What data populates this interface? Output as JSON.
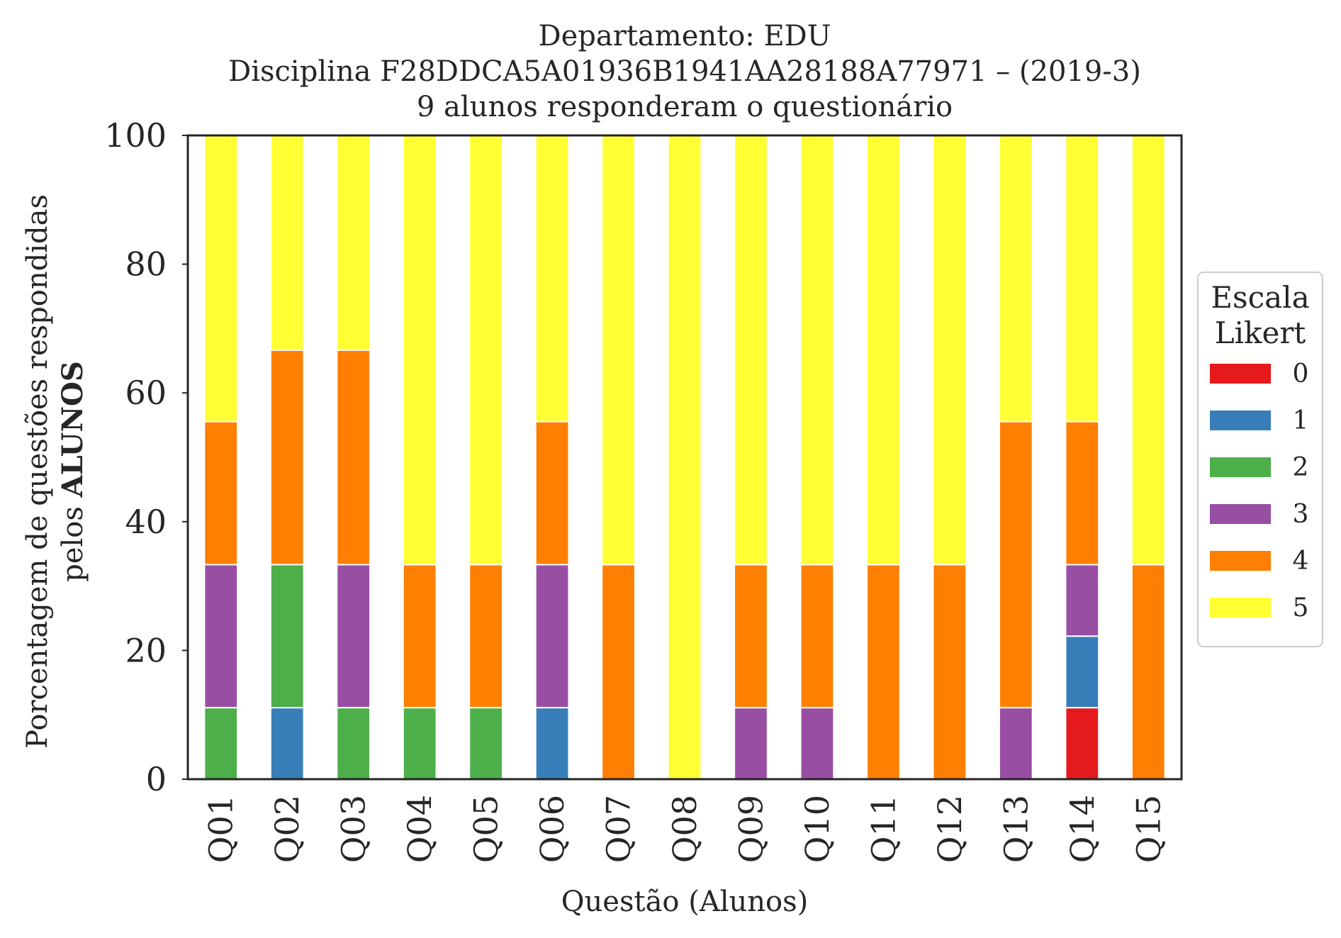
{
  "chart_data": {
    "type": "bar",
    "stacked": true,
    "title_lines": [
      "Departamento: EDU",
      "Disciplina F28DDCA5A01936B1941AA28188A77971 – (2019-3)",
      "9 alunos responderam o questionário"
    ],
    "xlabel": "Questão (Alunos)",
    "ylabel_line1": "Porcentagem de questões respondidas",
    "ylabel_line2_prefix": "pelos ",
    "ylabel_line2_bold": "ALUNOS",
    "ylim": [
      0,
      100
    ],
    "yticks": [
      "0",
      "20",
      "40",
      "60",
      "80",
      "100"
    ],
    "grid": false,
    "categories": [
      "Q01",
      "Q02",
      "Q03",
      "Q04",
      "Q05",
      "Q06",
      "Q07",
      "Q08",
      "Q09",
      "Q10",
      "Q11",
      "Q12",
      "Q13",
      "Q14",
      "Q15"
    ],
    "legend": {
      "title_line1": "Escala",
      "title_line2": "Likert",
      "placement": "right"
    },
    "series": [
      {
        "name": "0",
        "color": "#e41a1c",
        "values": [
          0,
          0,
          0,
          0,
          0,
          0,
          0,
          0,
          0,
          0,
          0,
          0,
          0,
          11.11,
          0
        ]
      },
      {
        "name": "1",
        "color": "#377eb8",
        "values": [
          0,
          11.11,
          0,
          0,
          0,
          11.11,
          0,
          0,
          0,
          0,
          0,
          0,
          0,
          11.11,
          0
        ]
      },
      {
        "name": "2",
        "color": "#4daf4a",
        "values": [
          11.11,
          22.22,
          11.11,
          11.11,
          11.11,
          0,
          0,
          0,
          0,
          0,
          0,
          0,
          0,
          0,
          0
        ]
      },
      {
        "name": "3",
        "color": "#984ea3",
        "values": [
          22.22,
          0,
          22.22,
          0,
          0,
          22.22,
          0,
          0,
          11.11,
          11.11,
          0,
          0,
          11.11,
          11.11,
          0
        ]
      },
      {
        "name": "4",
        "color": "#ff7f00",
        "values": [
          22.22,
          33.33,
          33.33,
          22.22,
          22.22,
          22.22,
          33.33,
          0,
          22.22,
          22.22,
          33.33,
          33.33,
          44.44,
          22.22,
          33.33
        ]
      },
      {
        "name": "5",
        "color": "#ffff33",
        "values": [
          44.44,
          33.33,
          33.33,
          66.67,
          66.67,
          44.44,
          66.67,
          100,
          66.67,
          66.67,
          66.67,
          66.67,
          44.44,
          44.44,
          66.67
        ]
      }
    ]
  }
}
